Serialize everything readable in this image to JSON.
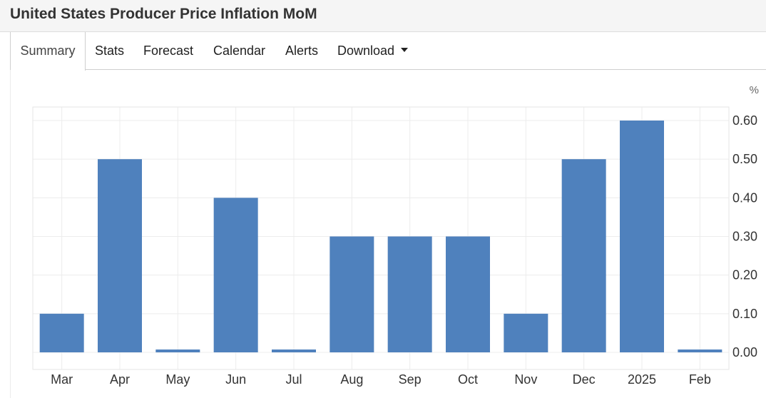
{
  "page": {
    "title": "United States Producer Price Inflation MoM"
  },
  "tabs": [
    {
      "label": "Summary",
      "active": true
    },
    {
      "label": "Stats"
    },
    {
      "label": "Forecast"
    },
    {
      "label": "Calendar"
    },
    {
      "label": "Alerts"
    },
    {
      "label": "Download",
      "icon": "caret-down-icon"
    }
  ],
  "colors": {
    "bar": "#4f81bd",
    "grid": "#ececec",
    "axis_text": "#333333"
  },
  "chart_data": {
    "type": "bar",
    "categories": [
      "Mar",
      "Apr",
      "May",
      "Jun",
      "Jul",
      "Aug",
      "Sep",
      "Oct",
      "Nov",
      "Dec",
      "2025",
      "Feb"
    ],
    "values": [
      0.1,
      0.5,
      0.0,
      0.4,
      0.0,
      0.3,
      0.3,
      0.3,
      0.1,
      0.5,
      0.6,
      0.0
    ],
    "unit": "%",
    "ylim": [
      0,
      0.6
    ],
    "yticks": [
      "0.00",
      "0.10",
      "0.20",
      "0.30",
      "0.40",
      "0.50",
      "0.60"
    ],
    "y_axis_side": "right",
    "grid": true,
    "legend": false
  }
}
